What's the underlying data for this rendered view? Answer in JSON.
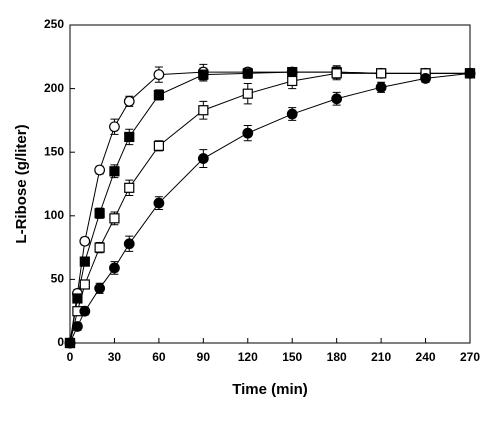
{
  "chart_data": {
    "type": "line",
    "x_label": "Time (min)",
    "y_label": "L-Ribose (g/liter)",
    "x": [
      0,
      5,
      10,
      20,
      30,
      40,
      60,
      90,
      120,
      150,
      180,
      210,
      240,
      270
    ],
    "series": [
      {
        "color": "#000000",
        "marker": "circle",
        "filled": false,
        "values": [
          0,
          39,
          80,
          136,
          170,
          190,
          211,
          213,
          213,
          213,
          213,
          212,
          212,
          212
        ],
        "errors": [
          0,
          3,
          3,
          3,
          6,
          4,
          6,
          6,
          3,
          3,
          3,
          3,
          3,
          3
        ]
      },
      {
        "color": "#000000",
        "marker": "square",
        "filled": true,
        "values": [
          0,
          35,
          64,
          102,
          135,
          162,
          195,
          211,
          212,
          213,
          213,
          212,
          212,
          212
        ],
        "errors": [
          0,
          3,
          3,
          4,
          5,
          6,
          4,
          5,
          4,
          3,
          5,
          3,
          3,
          3
        ]
      },
      {
        "color": "#000000",
        "marker": "square",
        "filled": false,
        "values": [
          0,
          25,
          46,
          75,
          98,
          122,
          155,
          183,
          196,
          206,
          212,
          212,
          212,
          212
        ],
        "errors": [
          0,
          3,
          3,
          4,
          5,
          6,
          4,
          7,
          8,
          6,
          5,
          3,
          3,
          3
        ]
      },
      {
        "color": "#000000",
        "marker": "circle",
        "filled": true,
        "values": [
          0,
          13,
          25,
          43,
          59,
          78,
          110,
          145,
          165,
          180,
          192,
          201,
          208,
          212
        ],
        "errors": [
          0,
          3,
          3,
          4,
          5,
          6,
          5,
          7,
          6,
          5,
          5,
          4,
          3,
          3
        ]
      }
    ],
    "xlim": [
      0,
      270
    ],
    "xticks": [
      0,
      30,
      60,
      90,
      120,
      150,
      180,
      210,
      240,
      270
    ],
    "ylim": [
      0,
      250
    ],
    "yticks": [
      0,
      50,
      100,
      150,
      200,
      250
    ],
    "grid": false
  }
}
